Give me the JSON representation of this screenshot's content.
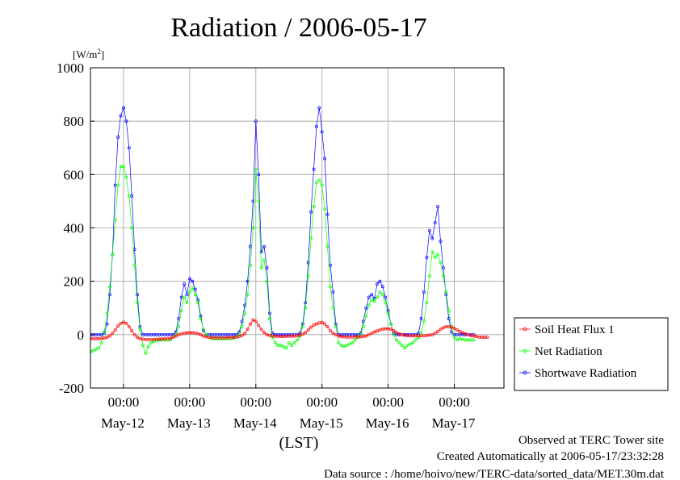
{
  "chart_data": {
    "type": "line",
    "title": "Radiation / 2006-05-17",
    "ylabel_unit": "[W/m",
    "ylabel_sup": "2",
    "ylabel_close": "]",
    "xlabel": "(LST)",
    "ylim": [
      -200,
      1000
    ],
    "yticks": [
      "1000",
      "800",
      "600",
      "400",
      "200",
      "0",
      "-200"
    ],
    "ytick_values": [
      1000,
      800,
      600,
      400,
      200,
      0,
      -200
    ],
    "xlim": [
      "2006-05-11T12:00",
      "2006-05-17T18:00"
    ],
    "xticks": [
      {
        "time": "2006-05-12T00:00",
        "time_label": "00:00",
        "date_label": "May-12"
      },
      {
        "time": "2006-05-13T00:00",
        "time_label": "00:00",
        "date_label": "May-13"
      },
      {
        "time": "2006-05-14T00:00",
        "time_label": "00:00",
        "date_label": "May-14"
      },
      {
        "time": "2006-05-15T00:00",
        "time_label": "00:00",
        "date_label": "May-15"
      },
      {
        "time": "2006-05-16T00:00",
        "time_label": "00:00",
        "date_label": "May-16"
      },
      {
        "time": "2006-05-17T00:00",
        "time_label": "00:00",
        "date_label": "May-17"
      }
    ],
    "grid": true,
    "legend_position": "right",
    "sample_interval_minutes": 60,
    "series": [
      {
        "name": "Soil Heat Flux 1",
        "color": "#ff0000",
        "x_start": "2006-05-11T12:00",
        "values": [
          -15,
          -15,
          -15,
          -15,
          -14,
          -13,
          -10,
          -5,
          5,
          18,
          32,
          42,
          47,
          42,
          30,
          15,
          0,
          -10,
          -15,
          -17,
          -18,
          -18,
          -18,
          -18,
          -17,
          -17,
          -16,
          -16,
          -15,
          -14,
          -10,
          -5,
          0,
          3,
          5,
          7,
          7,
          7,
          6,
          4,
          0,
          -5,
          -8,
          -10,
          -11,
          -12,
          -12,
          -12,
          -12,
          -12,
          -11,
          -11,
          -10,
          -9,
          -7,
          -3,
          5,
          20,
          40,
          55,
          50,
          35,
          20,
          8,
          0,
          -3,
          -5,
          -6,
          -6,
          -7,
          -7,
          -6,
          -6,
          -5,
          -5,
          -4,
          -2,
          2,
          8,
          18,
          28,
          36,
          40,
          44,
          46,
          40,
          30,
          15,
          5,
          0,
          -5,
          -7,
          -8,
          -9,
          -9,
          -9,
          -8,
          -8,
          -8,
          -7,
          -5,
          0,
          5,
          10,
          14,
          18,
          21,
          22,
          22,
          20,
          15,
          8,
          3,
          0,
          -2,
          -3,
          -4,
          -4,
          -4,
          -4,
          -4,
          -4,
          -3,
          -2,
          0,
          5,
          12,
          20,
          26,
          30,
          30,
          28,
          24,
          18,
          12,
          7,
          3,
          0,
          -3,
          -5,
          -7,
          -9,
          -10,
          -10,
          -10
        ]
      },
      {
        "name": "Net Radiation",
        "color": "#00ff00",
        "x_start": "2006-05-11T12:00",
        "values": [
          -65,
          -60,
          -55,
          -50,
          -30,
          10,
          80,
          180,
          300,
          430,
          560,
          630,
          630,
          590,
          520,
          400,
          260,
          120,
          20,
          -40,
          -70,
          -45,
          -30,
          -25,
          -22,
          -20,
          -20,
          -20,
          -20,
          -20,
          -10,
          0,
          30,
          90,
          140,
          120,
          160,
          175,
          150,
          120,
          60,
          20,
          0,
          -10,
          -15,
          -15,
          -15,
          -15,
          -15,
          -15,
          -15,
          -15,
          -12,
          -10,
          0,
          30,
          80,
          150,
          260,
          400,
          620,
          500,
          250,
          280,
          200,
          60,
          -10,
          -30,
          -40,
          -40,
          -45,
          -50,
          -30,
          -40,
          -30,
          -20,
          -5,
          30,
          100,
          220,
          360,
          480,
          570,
          580,
          560,
          470,
          330,
          180,
          100,
          30,
          -30,
          -40,
          -45,
          -40,
          -35,
          -30,
          -20,
          -10,
          0,
          30,
          70,
          110,
          130,
          125,
          140,
          160,
          150,
          120,
          80,
          40,
          0,
          -20,
          -30,
          -40,
          -50,
          -40,
          -35,
          -30,
          -20,
          -10,
          5,
          50,
          120,
          220,
          310,
          290,
          300,
          270,
          220,
          160,
          90,
          30,
          -10,
          -20,
          -15,
          -18,
          -20,
          -20,
          -20,
          -20
        ]
      },
      {
        "name": "Shortwave Radiation",
        "color": "#0000ff",
        "x_start": "2006-05-11T12:00",
        "values": [
          0,
          0,
          0,
          0,
          0,
          5,
          40,
          150,
          300,
          560,
          740,
          820,
          850,
          800,
          700,
          520,
          320,
          150,
          30,
          0,
          0,
          0,
          0,
          0,
          0,
          0,
          0,
          0,
          0,
          0,
          0,
          10,
          60,
          140,
          190,
          150,
          210,
          200,
          170,
          130,
          70,
          15,
          0,
          0,
          0,
          0,
          0,
          0,
          0,
          0,
          0,
          0,
          0,
          0,
          10,
          50,
          110,
          200,
          330,
          500,
          800,
          600,
          310,
          330,
          250,
          80,
          5,
          0,
          0,
          0,
          0,
          0,
          0,
          0,
          0,
          0,
          5,
          40,
          120,
          270,
          460,
          620,
          780,
          850,
          760,
          660,
          450,
          260,
          160,
          40,
          0,
          0,
          0,
          0,
          0,
          0,
          0,
          0,
          5,
          50,
          100,
          140,
          150,
          135,
          190,
          200,
          180,
          140,
          90,
          40,
          5,
          0,
          0,
          0,
          0,
          0,
          0,
          0,
          0,
          5,
          60,
          160,
          290,
          390,
          360,
          420,
          480,
          350,
          250,
          150,
          60,
          10,
          0,
          0,
          0,
          0,
          0,
          0,
          0,
          0
        ]
      }
    ]
  },
  "footer": {
    "line1": "Observed at TERC Tower site",
    "line2": "Created Automatically at 2006-05-17/23:32:28",
    "line3": "Data source : /home/hoivo/new/TERC-data/sorted_data/MET.30m.dat"
  }
}
